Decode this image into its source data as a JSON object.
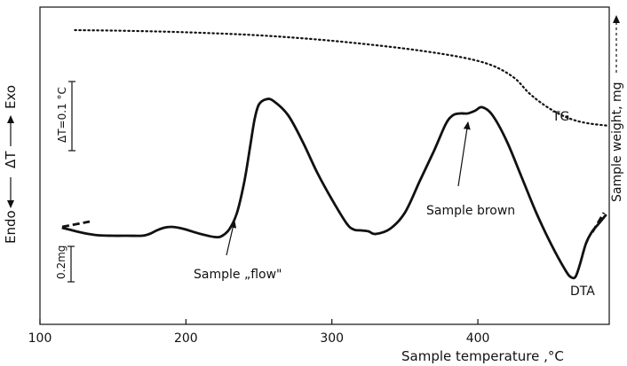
{
  "chart_data": {
    "type": "line",
    "xlabel": "Sample temperature ,°C",
    "ylabel_right": "Sample weight, mg",
    "ylabel_left": {
      "top": "Exo",
      "middle": "ΔT",
      "bottom": "Endo"
    },
    "xlim": [
      100,
      490
    ],
    "x_ticks": [
      100,
      200,
      300,
      400
    ],
    "scale_bars": {
      "dt": "ΔT=0.1 °C",
      "mass": "0.2mg"
    },
    "grid": false,
    "series": [
      {
        "name": "TG",
        "style": "dotted",
        "x": [
          124,
          150,
          180,
          210,
          240,
          270,
          300,
          330,
          360,
          390,
          410,
          425,
          435,
          445,
          455,
          465,
          475,
          490
        ],
        "y": [
          34,
          34.5,
          35.5,
          37,
          39,
          42,
          46,
          51,
          57,
          65,
          74,
          88,
          105,
          118,
          128,
          135,
          139,
          142
        ]
      },
      {
        "name": "DTA",
        "style": "solid",
        "x": [
          115,
          120,
          130,
          140,
          150,
          160,
          170,
          175,
          180,
          185,
          190,
          195,
          200,
          210,
          220,
          225,
          230,
          235,
          240,
          244,
          247,
          250,
          255,
          260,
          270,
          280,
          290,
          300,
          310,
          315,
          320,
          325,
          330,
          340,
          350,
          360,
          370,
          378,
          383,
          388,
          393,
          398,
          403,
          410,
          420,
          430,
          440,
          450,
          460,
          464,
          467,
          470,
          474,
          478,
          483,
          488
        ],
        "y": [
          257,
          259,
          263,
          265.5,
          266,
          266,
          266,
          264,
          260,
          257,
          256,
          257,
          259,
          264,
          267.5,
          266,
          258,
          240,
          205,
          165,
          135,
          118,
          112,
          114,
          130,
          160,
          195,
          225,
          252,
          259,
          260,
          261,
          264,
          258,
          240,
          205,
          170,
          140,
          130,
          128,
          128,
          125,
          121,
          130,
          160,
          200,
          240,
          275,
          305,
          313,
          312,
          298,
          275,
          262,
          252,
          242
        ]
      }
    ],
    "annotations": [
      {
        "id": "flow",
        "text": "Sample „flow\"",
        "target_x": 232,
        "target_y": 262
      },
      {
        "id": "brown",
        "text": "Sample brown",
        "target_x": 392,
        "target_y": 128
      },
      {
        "id": "tg",
        "text": "TG"
      },
      {
        "id": "dta",
        "text": "DTA"
      }
    ]
  }
}
